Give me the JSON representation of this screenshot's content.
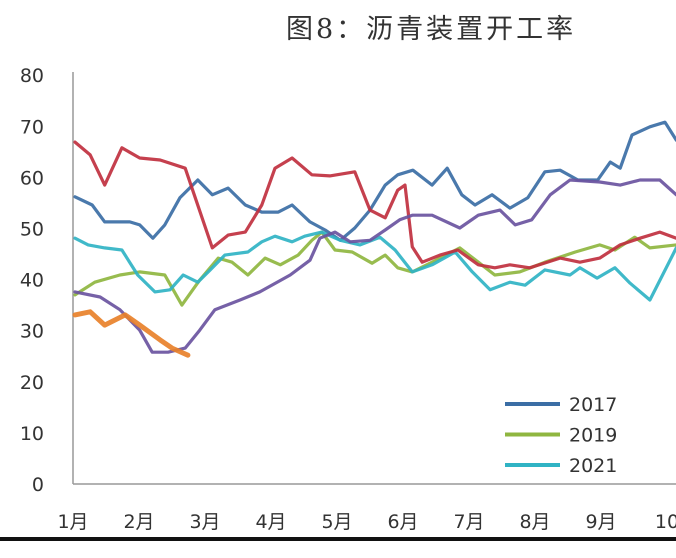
{
  "chart_data": {
    "type": "line",
    "title": "图8：沥青装置开工率",
    "xlabel": "",
    "ylabel": "",
    "x_unit": "month",
    "xticks": [
      "1月",
      "2月",
      "3月",
      "4月",
      "5月",
      "6月",
      "7月",
      "8月",
      "9月",
      "10"
    ],
    "yticks": [
      0,
      10,
      20,
      30,
      40,
      50,
      60,
      70,
      80
    ],
    "ylim": [
      0,
      80
    ],
    "xlim": [
      1,
      10.1
    ],
    "grid": false,
    "legend_position": "bottom-right",
    "series": [
      {
        "name": "2017",
        "color": "#3b6ea5",
        "points": [
          [
            1.0,
            56.2
          ],
          [
            1.26,
            54.6
          ],
          [
            1.45,
            51.3
          ],
          [
            1.83,
            51.3
          ],
          [
            1.98,
            50.7
          ],
          [
            2.18,
            48.1
          ],
          [
            2.36,
            50.7
          ],
          [
            2.59,
            56.0
          ],
          [
            2.86,
            59.5
          ],
          [
            3.08,
            56.6
          ],
          [
            3.32,
            57.9
          ],
          [
            3.58,
            54.6
          ],
          [
            3.83,
            53.2
          ],
          [
            4.08,
            53.2
          ],
          [
            4.29,
            54.6
          ],
          [
            4.56,
            51.3
          ],
          [
            4.79,
            49.7
          ],
          [
            5.02,
            47.7
          ],
          [
            5.24,
            50.1
          ],
          [
            5.47,
            53.6
          ],
          [
            5.7,
            58.5
          ],
          [
            5.89,
            60.5
          ],
          [
            6.12,
            61.4
          ],
          [
            6.41,
            58.5
          ],
          [
            6.64,
            61.8
          ],
          [
            6.86,
            56.6
          ],
          [
            7.06,
            54.6
          ],
          [
            7.32,
            56.6
          ],
          [
            7.59,
            54.0
          ],
          [
            7.86,
            56.0
          ],
          [
            8.12,
            61.1
          ],
          [
            8.35,
            61.4
          ],
          [
            8.62,
            59.5
          ],
          [
            8.92,
            59.5
          ],
          [
            9.11,
            63.0
          ],
          [
            9.26,
            61.8
          ],
          [
            9.44,
            68.3
          ],
          [
            9.71,
            69.9
          ],
          [
            9.94,
            70.8
          ],
          [
            10.11,
            67.3
          ]
        ]
      },
      {
        "name": "2019",
        "color": "#8fb640",
        "points": [
          [
            1.0,
            37.0
          ],
          [
            1.3,
            39.5
          ],
          [
            1.68,
            40.9
          ],
          [
            1.98,
            41.5
          ],
          [
            2.36,
            40.9
          ],
          [
            2.62,
            35.0
          ],
          [
            2.89,
            39.9
          ],
          [
            3.17,
            44.2
          ],
          [
            3.38,
            43.4
          ],
          [
            3.62,
            40.9
          ],
          [
            3.88,
            44.2
          ],
          [
            4.11,
            42.9
          ],
          [
            4.38,
            44.8
          ],
          [
            4.59,
            47.7
          ],
          [
            4.74,
            49.3
          ],
          [
            4.94,
            45.8
          ],
          [
            5.2,
            45.4
          ],
          [
            5.5,
            43.2
          ],
          [
            5.7,
            44.8
          ],
          [
            5.89,
            42.3
          ],
          [
            6.11,
            41.5
          ],
          [
            6.41,
            43.4
          ],
          [
            6.83,
            46.2
          ],
          [
            7.11,
            43.4
          ],
          [
            7.36,
            40.9
          ],
          [
            7.74,
            41.5
          ],
          [
            8.12,
            43.4
          ],
          [
            8.58,
            45.4
          ],
          [
            8.95,
            46.8
          ],
          [
            9.18,
            45.8
          ],
          [
            9.48,
            48.3
          ],
          [
            9.71,
            46.2
          ],
          [
            10.11,
            46.8
          ]
        ]
      },
      {
        "name": "2021",
        "color": "#30b3c4",
        "points": [
          [
            1.0,
            48.1
          ],
          [
            1.2,
            46.8
          ],
          [
            1.45,
            46.2
          ],
          [
            1.71,
            45.8
          ],
          [
            1.95,
            40.9
          ],
          [
            2.21,
            37.6
          ],
          [
            2.44,
            38.0
          ],
          [
            2.64,
            40.9
          ],
          [
            2.86,
            39.5
          ],
          [
            3.05,
            41.9
          ],
          [
            3.27,
            44.8
          ],
          [
            3.62,
            45.4
          ],
          [
            3.83,
            47.4
          ],
          [
            4.03,
            48.5
          ],
          [
            4.29,
            47.4
          ],
          [
            4.48,
            48.5
          ],
          [
            4.74,
            49.3
          ],
          [
            5.02,
            47.7
          ],
          [
            5.32,
            46.8
          ],
          [
            5.62,
            48.3
          ],
          [
            5.85,
            45.8
          ],
          [
            6.11,
            41.5
          ],
          [
            6.41,
            42.9
          ],
          [
            6.76,
            45.4
          ],
          [
            7.02,
            41.5
          ],
          [
            7.29,
            38.0
          ],
          [
            7.59,
            39.5
          ],
          [
            7.82,
            38.9
          ],
          [
            8.12,
            41.9
          ],
          [
            8.5,
            40.9
          ],
          [
            8.65,
            42.3
          ],
          [
            8.91,
            40.3
          ],
          [
            9.18,
            42.3
          ],
          [
            9.41,
            39.3
          ],
          [
            9.71,
            36.0
          ],
          [
            10.11,
            46.2
          ]
        ]
      },
      {
        "color": "#c0303f",
        "points": [
          [
            1.0,
            66.9
          ],
          [
            1.23,
            64.4
          ],
          [
            1.45,
            58.5
          ],
          [
            1.71,
            65.8
          ],
          [
            1.98,
            63.8
          ],
          [
            2.29,
            63.4
          ],
          [
            2.67,
            61.8
          ],
          [
            3.08,
            46.2
          ],
          [
            3.32,
            48.7
          ],
          [
            3.58,
            49.3
          ],
          [
            3.83,
            54.6
          ],
          [
            4.03,
            61.8
          ],
          [
            4.29,
            63.8
          ],
          [
            4.59,
            60.5
          ],
          [
            4.86,
            60.3
          ],
          [
            5.24,
            61.1
          ],
          [
            5.47,
            53.6
          ],
          [
            5.7,
            52.1
          ],
          [
            5.89,
            57.5
          ],
          [
            6.0,
            58.5
          ],
          [
            6.11,
            46.4
          ],
          [
            6.26,
            43.4
          ],
          [
            6.53,
            44.8
          ],
          [
            6.8,
            45.8
          ],
          [
            7.11,
            42.9
          ],
          [
            7.36,
            42.3
          ],
          [
            7.59,
            42.9
          ],
          [
            7.89,
            42.3
          ],
          [
            8.35,
            44.2
          ],
          [
            8.65,
            43.4
          ],
          [
            8.95,
            44.2
          ],
          [
            9.26,
            46.8
          ],
          [
            9.56,
            48.1
          ],
          [
            9.86,
            49.3
          ],
          [
            10.11,
            48.1
          ]
        ]
      },
      {
        "color": "#6a54a0",
        "points": [
          [
            1.0,
            37.6
          ],
          [
            1.38,
            36.6
          ],
          [
            1.68,
            34.1
          ],
          [
            1.98,
            30.1
          ],
          [
            2.17,
            25.8
          ],
          [
            2.41,
            25.8
          ],
          [
            2.67,
            26.6
          ],
          [
            2.89,
            30.1
          ],
          [
            3.12,
            34.1
          ],
          [
            3.5,
            36.0
          ],
          [
            3.8,
            37.6
          ],
          [
            4.26,
            40.9
          ],
          [
            4.56,
            43.8
          ],
          [
            4.71,
            48.1
          ],
          [
            4.94,
            49.3
          ],
          [
            5.17,
            47.4
          ],
          [
            5.47,
            47.7
          ],
          [
            5.7,
            49.7
          ],
          [
            5.92,
            51.7
          ],
          [
            6.11,
            52.6
          ],
          [
            6.41,
            52.6
          ],
          [
            6.83,
            50.1
          ],
          [
            7.11,
            52.6
          ],
          [
            7.44,
            53.6
          ],
          [
            7.67,
            50.7
          ],
          [
            7.92,
            51.7
          ],
          [
            8.2,
            56.6
          ],
          [
            8.5,
            59.5
          ],
          [
            8.95,
            59.1
          ],
          [
            9.26,
            58.5
          ],
          [
            9.56,
            59.5
          ],
          [
            9.86,
            59.5
          ],
          [
            10.11,
            56.6
          ]
        ]
      },
      {
        "color": "#e8812a",
        "points": [
          [
            1.0,
            33.1
          ],
          [
            1.23,
            33.7
          ],
          [
            1.45,
            31.1
          ],
          [
            1.76,
            33.1
          ],
          [
            1.98,
            31.1
          ],
          [
            2.29,
            28.2
          ],
          [
            2.47,
            26.6
          ],
          [
            2.71,
            25.2
          ]
        ]
      }
    ]
  }
}
